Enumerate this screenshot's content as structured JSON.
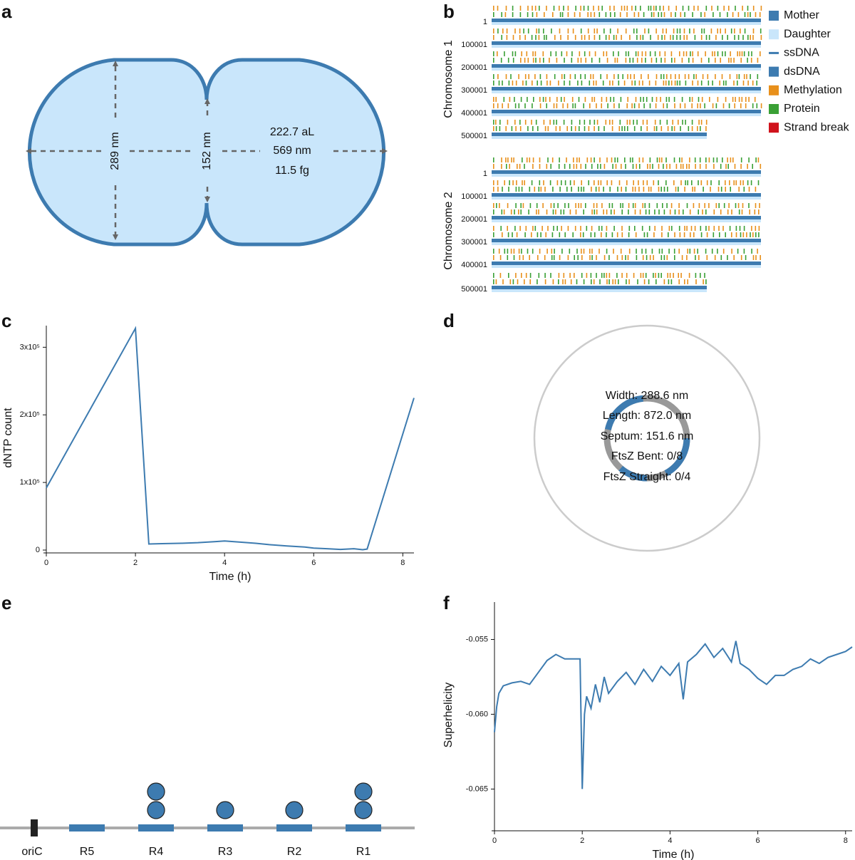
{
  "panel_labels": [
    "a",
    "b",
    "c",
    "d",
    "e",
    "f"
  ],
  "cell_diagram": {
    "width_label": "289 nm",
    "septum_label": "152 nm",
    "volume": "222.7 aL",
    "length": "569 nm",
    "mass": "11.5 fg"
  },
  "chromosome_map": {
    "legend": [
      {
        "label": "Mother",
        "color": "#3d7bb0"
      },
      {
        "label": "Daughter",
        "color": "#c9e6fb"
      },
      {
        "label": "ssDNA",
        "color": "#3d7bb0"
      },
      {
        "label": "dsDNA",
        "color": "#3d7bb0"
      },
      {
        "label": "Methylation",
        "color": "#e8901b"
      },
      {
        "label": "Protein",
        "color": "#3aa035"
      },
      {
        "label": "Strand break",
        "color": "#d0131c"
      }
    ],
    "chromosomes": [
      {
        "label": "Chromosome 1",
        "rows": [
          1,
          100001,
          200001,
          300001,
          400001,
          500001
        ]
      },
      {
        "label": "Chromosome 2",
        "rows": [
          1,
          100001,
          200001,
          300001,
          400001,
          500001
        ]
      }
    ]
  },
  "chart_data": [
    {
      "type": "line",
      "x_label": "Time (h)",
      "y_label": "dNTP count",
      "color": "#3d7bb0",
      "x": [
        0,
        2,
        2.3,
        2.6,
        3,
        3.4,
        3.8,
        4,
        4.3,
        4.7,
        5,
        5.4,
        5.8,
        6,
        6.3,
        6.6,
        6.9,
        7.1,
        7.2,
        8.25
      ],
      "values": [
        92000,
        328000,
        9000,
        9500,
        10000,
        11000,
        12500,
        13500,
        12000,
        10000,
        8000,
        6000,
        4500,
        3000,
        2000,
        1000,
        2000,
        500,
        1500,
        225000
      ],
      "xlim": [
        0,
        8.25
      ],
      "xticks": [
        0,
        2,
        4,
        6,
        8
      ],
      "ylim": [
        0,
        332000
      ],
      "yticks": [
        0,
        {
          "value": 100000,
          "label": "1x10⁵"
        },
        {
          "value": 200000,
          "label": "2x10⁵"
        },
        {
          "value": 300000,
          "label": "3x10⁵"
        }
      ]
    },
    {
      "type": "line",
      "x_label": "Time (h)",
      "y_label": "Superhelicity",
      "color": "#3d7bb0",
      "x": [
        0,
        0.05,
        0.1,
        0.2,
        0.4,
        0.6,
        0.8,
        1.0,
        1.2,
        1.4,
        1.6,
        1.8,
        1.95,
        2.0,
        2.05,
        2.1,
        2.2,
        2.3,
        2.4,
        2.5,
        2.6,
        2.8,
        3.0,
        3.2,
        3.4,
        3.6,
        3.8,
        4.0,
        4.2,
        4.3,
        4.4,
        4.6,
        4.8,
        5.0,
        5.2,
        5.4,
        5.5,
        5.6,
        5.8,
        6.0,
        6.2,
        6.4,
        6.6,
        6.8,
        7.0,
        7.2,
        7.4,
        7.6,
        7.8,
        8.0,
        8.15
      ],
      "values": [
        -0.0612,
        -0.0595,
        -0.0586,
        -0.0581,
        -0.0579,
        -0.0578,
        -0.058,
        -0.0572,
        -0.0564,
        -0.056,
        -0.0563,
        -0.0563,
        -0.0563,
        -0.065,
        -0.06,
        -0.0588,
        -0.0596,
        -0.058,
        -0.0592,
        -0.0575,
        -0.0586,
        -0.0578,
        -0.0572,
        -0.058,
        -0.057,
        -0.0578,
        -0.0568,
        -0.0574,
        -0.0566,
        -0.059,
        -0.0565,
        -0.056,
        -0.0553,
        -0.0562,
        -0.0556,
        -0.0565,
        -0.0551,
        -0.0566,
        -0.057,
        -0.0576,
        -0.058,
        -0.0574,
        -0.0574,
        -0.057,
        -0.0568,
        -0.0563,
        -0.0566,
        -0.0562,
        -0.056,
        -0.0558,
        -0.0555
      ],
      "xlim": [
        0,
        8.15
      ],
      "xticks": [
        0,
        2,
        4,
        6,
        8
      ],
      "ylim": [
        -0.0676,
        -0.0525
      ],
      "yticks": [
        -0.065,
        {
          "value": -0.06,
          "label": "-0.060"
        },
        -0.055
      ]
    }
  ],
  "ftsz_ring": {
    "lines": [
      "Width: 288.6 nm",
      "Length: 872.0 nm",
      "Septum: 151.6 nm",
      "FtsZ Bent: 0/8",
      "FtsZ Straight: 0/4"
    ]
  },
  "regulatory_diagram": {
    "origin": "oriC",
    "regions": [
      {
        "label": "R5",
        "bound": 0
      },
      {
        "label": "R4",
        "bound": 2
      },
      {
        "label": "R3",
        "bound": 1
      },
      {
        "label": "R2",
        "bound": 1
      },
      {
        "label": "R1",
        "bound": 2
      }
    ]
  }
}
